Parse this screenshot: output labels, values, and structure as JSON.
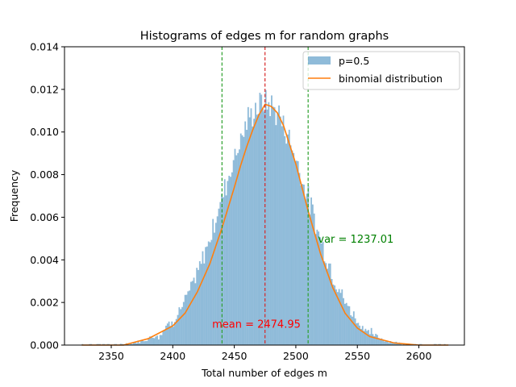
{
  "chart_data": {
    "type": "bar",
    "title": "Histograms of edges m for random graphs",
    "xlabel": "Total number of edges m",
    "ylabel": "Frequency",
    "xlim": [
      2312,
      2637
    ],
    "ylim": [
      0,
      0.014
    ],
    "xticks": [
      2350,
      2400,
      2450,
      2500,
      2550,
      2600
    ],
    "yticks": [
      0.0,
      0.002,
      0.004,
      0.006,
      0.008,
      0.01,
      0.012,
      0.014
    ],
    "xtick_labels": [
      "2350",
      "2400",
      "2450",
      "2500",
      "2550",
      "2600"
    ],
    "ytick_labels": [
      "0.000",
      "0.002",
      "0.004",
      "0.006",
      "0.008",
      "0.010",
      "0.012",
      "0.014"
    ],
    "legend_position": "top-right",
    "grid": false,
    "series": [
      {
        "name": "p=0.5",
        "kind": "histogram",
        "color": "#1f77b4",
        "opacity": 0.5,
        "approx_distribution": {
          "mean": 2474.95,
          "sd": 35.17,
          "range": [
            2326,
            2624
          ]
        }
      },
      {
        "name": "binomial distribution",
        "kind": "line",
        "color": "#ff7f0e",
        "x": [
          2326,
          2340,
          2360,
          2380,
          2400,
          2410,
          2420,
          2430,
          2440,
          2450,
          2455,
          2460,
          2465,
          2470,
          2475,
          2480,
          2485,
          2490,
          2495,
          2500,
          2510,
          2520,
          2530,
          2540,
          2550,
          2560,
          2580,
          2600,
          2624
        ],
        "y": [
          0.0,
          0.0,
          0.0,
          0.0003,
          0.0009,
          0.0015,
          0.0025,
          0.0038,
          0.0055,
          0.0074,
          0.0084,
          0.0093,
          0.0101,
          0.0108,
          0.0113,
          0.0112,
          0.0109,
          0.0103,
          0.0094,
          0.0085,
          0.0063,
          0.0043,
          0.0027,
          0.0015,
          0.0008,
          0.0004,
          0.0001,
          0.0,
          0.0
        ]
      }
    ],
    "vlines": [
      {
        "x": 2474.95,
        "color": "#d62728",
        "style": "dashed"
      },
      {
        "x": 2440,
        "color": "#2ca02c",
        "style": "dashed"
      },
      {
        "x": 2510,
        "color": "#2ca02c",
        "style": "dashed"
      }
    ],
    "annotations": [
      {
        "text": "mean = 2474.95",
        "x": 2432,
        "y": 0.001,
        "color": "#ff0000"
      },
      {
        "text": "var = 1237.01",
        "x": 2518,
        "y": 0.005,
        "color": "#008000"
      }
    ]
  }
}
